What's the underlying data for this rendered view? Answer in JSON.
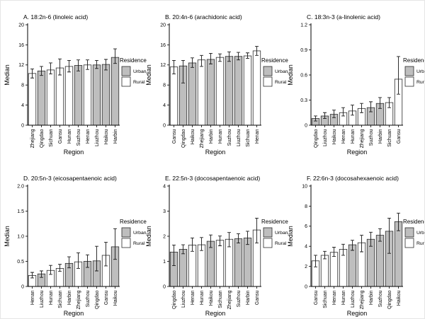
{
  "figure": {
    "x_axis_label": "Region",
    "y_axis_label": "Median",
    "legend": {
      "title": "Residence",
      "items": [
        {
          "label": "Urban",
          "color": "#bebebe"
        },
        {
          "label": "Rural",
          "color": "#ffffff"
        }
      ]
    },
    "colors": {
      "urban_fill": "#bebebe",
      "rural_fill": "#ffffff",
      "bar_stroke": "#2a2a2a",
      "errorbar": "#1a1a1a",
      "axis": "#000000",
      "background": "#ffffff"
    }
  },
  "chart_data": [
    {
      "type": "bar",
      "panel_label": "A",
      "title": "A. 18:2n-6 (linoleic acid)",
      "xlabel": "Region",
      "ylabel": "Median",
      "ylim": [
        0,
        20
      ],
      "yticks": [
        0,
        4,
        8,
        12,
        16,
        20
      ],
      "ytick_labels": [
        "0",
        "4",
        "8",
        "12",
        "16",
        "20"
      ],
      "legend_position": "right",
      "grid": false,
      "categories": [
        "Zhejiang",
        "Qingdao",
        "Sichuan",
        "Gansu",
        "Hunan",
        "Suzhou",
        "Henan",
        "Liuzhou",
        "Haikou",
        "Harbin"
      ],
      "residence": [
        "Rural",
        "Urban",
        "Rural",
        "Rural",
        "Rural",
        "Urban",
        "Rural",
        "Urban",
        "Urban",
        "Urban"
      ],
      "values": [
        10.3,
        10.8,
        11.0,
        11.4,
        11.7,
        11.9,
        12.0,
        12.0,
        12.1,
        13.5
      ],
      "err_low": [
        9.4,
        9.9,
        10.2,
        10.0,
        10.6,
        10.8,
        11.1,
        11.3,
        11.0,
        12.3
      ],
      "err_high": [
        11.2,
        11.7,
        12.4,
        13.2,
        12.9,
        13.0,
        13.0,
        12.9,
        13.1,
        15.2
      ]
    },
    {
      "type": "bar",
      "panel_label": "B",
      "title": "B. 20:4n-6 (arachidonic acid)",
      "xlabel": "Region",
      "ylabel": "Median",
      "ylim": [
        0,
        20
      ],
      "yticks": [
        0,
        4,
        8,
        12,
        16,
        20
      ],
      "ytick_labels": [
        "0",
        "4",
        "8",
        "12",
        "16",
        "20"
      ],
      "legend_position": "right",
      "grid": false,
      "categories": [
        "Gansu",
        "Qingdao",
        "Haikou",
        "Zhejiang",
        "Harbin",
        "Hunan",
        "Suzhou",
        "Liuzhou",
        "Sichuan",
        "Henan"
      ],
      "residence": [
        "Rural",
        "Urban",
        "Urban",
        "Rural",
        "Urban",
        "Rural",
        "Urban",
        "Urban",
        "Rural",
        "Rural"
      ],
      "values": [
        11.6,
        11.8,
        12.4,
        13.0,
        13.1,
        13.5,
        13.7,
        13.7,
        13.8,
        14.8
      ],
      "err_low": [
        10.2,
        8.4,
        11.5,
        11.7,
        12.2,
        12.7,
        12.7,
        13.0,
        13.3,
        13.9
      ],
      "err_high": [
        12.9,
        12.9,
        13.4,
        13.9,
        14.3,
        14.2,
        14.6,
        14.5,
        14.4,
        15.7
      ]
    },
    {
      "type": "bar",
      "panel_label": "C",
      "title": "C. 18:3n-3 (a-linolenic acid)",
      "xlabel": "Region",
      "ylabel": "Median",
      "ylim": [
        0,
        1.2
      ],
      "yticks": [
        0,
        0.3,
        0.6,
        0.9,
        1.2
      ],
      "ytick_labels": [
        "0",
        "0.3",
        "0.6",
        "0.9",
        "1.2"
      ],
      "legend_position": "right",
      "grid": false,
      "categories": [
        "Qingdao",
        "Liuzhou",
        "Haikou",
        "Henan",
        "Hunan",
        "Zhejiang",
        "Suzhou",
        "Harbin",
        "Sichuan",
        "Gansu"
      ],
      "residence": [
        "Urban",
        "Urban",
        "Urban",
        "Rural",
        "Rural",
        "Rural",
        "Urban",
        "Urban",
        "Rural",
        "Rural"
      ],
      "values": [
        0.08,
        0.11,
        0.13,
        0.15,
        0.17,
        0.2,
        0.21,
        0.26,
        0.27,
        0.55
      ],
      "err_low": [
        0.05,
        0.08,
        0.09,
        0.11,
        0.12,
        0.15,
        0.16,
        0.2,
        0.21,
        0.37
      ],
      "err_high": [
        0.11,
        0.15,
        0.18,
        0.21,
        0.24,
        0.26,
        0.28,
        0.33,
        0.33,
        0.82
      ]
    },
    {
      "type": "bar",
      "panel_label": "D",
      "title": "D. 20:5n-3 (eicosapentaenoic acid)",
      "xlabel": "Region",
      "ylabel": "Median",
      "ylim": [
        0,
        2.0
      ],
      "yticks": [
        0,
        0.5,
        1.0,
        1.5,
        2.0
      ],
      "ytick_labels": [
        "0",
        "0.5",
        "1.0",
        "1.5",
        "2.0"
      ],
      "legend_position": "right",
      "grid": false,
      "categories": [
        "Henan",
        "Liuzhou",
        "Hunan",
        "Sichuan",
        "Harbin",
        "Zhejiang",
        "Suzhou",
        "Qingdao",
        "Gansu",
        "Haikou"
      ],
      "residence": [
        "Rural",
        "Urban",
        "Rural",
        "Rural",
        "Urban",
        "Rural",
        "Urban",
        "Urban",
        "Rural",
        "Urban"
      ],
      "values": [
        0.22,
        0.25,
        0.32,
        0.36,
        0.46,
        0.49,
        0.5,
        0.51,
        0.62,
        0.79
      ],
      "err_low": [
        0.17,
        0.18,
        0.24,
        0.3,
        0.37,
        0.36,
        0.38,
        0.31,
        0.41,
        0.54
      ],
      "err_high": [
        0.28,
        0.31,
        0.42,
        0.44,
        0.59,
        0.67,
        0.63,
        0.8,
        0.88,
        1.15
      ]
    },
    {
      "type": "bar",
      "panel_label": "E",
      "title": "E. 22:5n-3 (docosapentaenoic acid)",
      "xlabel": "Region",
      "ylabel": "Median",
      "ylim": [
        0,
        4
      ],
      "yticks": [
        0,
        1,
        2,
        3,
        4
      ],
      "ytick_labels": [
        "0",
        "1",
        "2",
        "3",
        "4"
      ],
      "legend_position": "right",
      "grid": false,
      "categories": [
        "Qingdao",
        "Liuzhou",
        "Henan",
        "Hunan",
        "Haikou",
        "Sichuan",
        "Zhejiang",
        "Suzhou",
        "Harbin",
        "Gansu"
      ],
      "residence": [
        "Urban",
        "Urban",
        "Rural",
        "Rural",
        "Urban",
        "Rural",
        "Rural",
        "Urban",
        "Urban",
        "Rural"
      ],
      "values": [
        1.37,
        1.48,
        1.65,
        1.66,
        1.8,
        1.84,
        1.88,
        1.9,
        1.93,
        2.25
      ],
      "err_low": [
        0.83,
        1.3,
        1.4,
        1.43,
        1.55,
        1.62,
        1.58,
        1.73,
        1.67,
        1.73
      ],
      "err_high": [
        1.65,
        1.66,
        1.93,
        1.95,
        2.05,
        2.01,
        2.15,
        2.1,
        2.2,
        2.72
      ]
    },
    {
      "type": "bar",
      "panel_label": "F",
      "title": "F. 22:6n-3 (docosahexaenoic acid)",
      "xlabel": "Region",
      "ylabel": "Median",
      "ylim": [
        0,
        10
      ],
      "yticks": [
        0,
        2,
        4,
        6,
        8,
        10
      ],
      "ytick_labels": [
        "0",
        "2",
        "4",
        "6",
        "8",
        "10"
      ],
      "legend_position": "right",
      "grid": false,
      "categories": [
        "Gansu",
        "Sichuan",
        "Henan",
        "Hunan",
        "Liuzhou",
        "Zhejiang",
        "Harbin",
        "Suzhou",
        "Qingdao",
        "Haikou"
      ],
      "residence": [
        "Rural",
        "Rural",
        "Rural",
        "Rural",
        "Urban",
        "Rural",
        "Urban",
        "Urban",
        "Urban",
        "Urban"
      ],
      "values": [
        2.55,
        3.1,
        3.4,
        3.7,
        4.15,
        4.35,
        4.7,
        5.1,
        5.5,
        6.45
      ],
      "err_low": [
        1.95,
        2.75,
        3.0,
        3.1,
        3.6,
        3.45,
        4.0,
        4.5,
        3.3,
        5.55
      ],
      "err_high": [
        3.1,
        3.5,
        3.9,
        4.2,
        4.6,
        5.1,
        5.4,
        5.75,
        6.8,
        7.3
      ]
    }
  ]
}
